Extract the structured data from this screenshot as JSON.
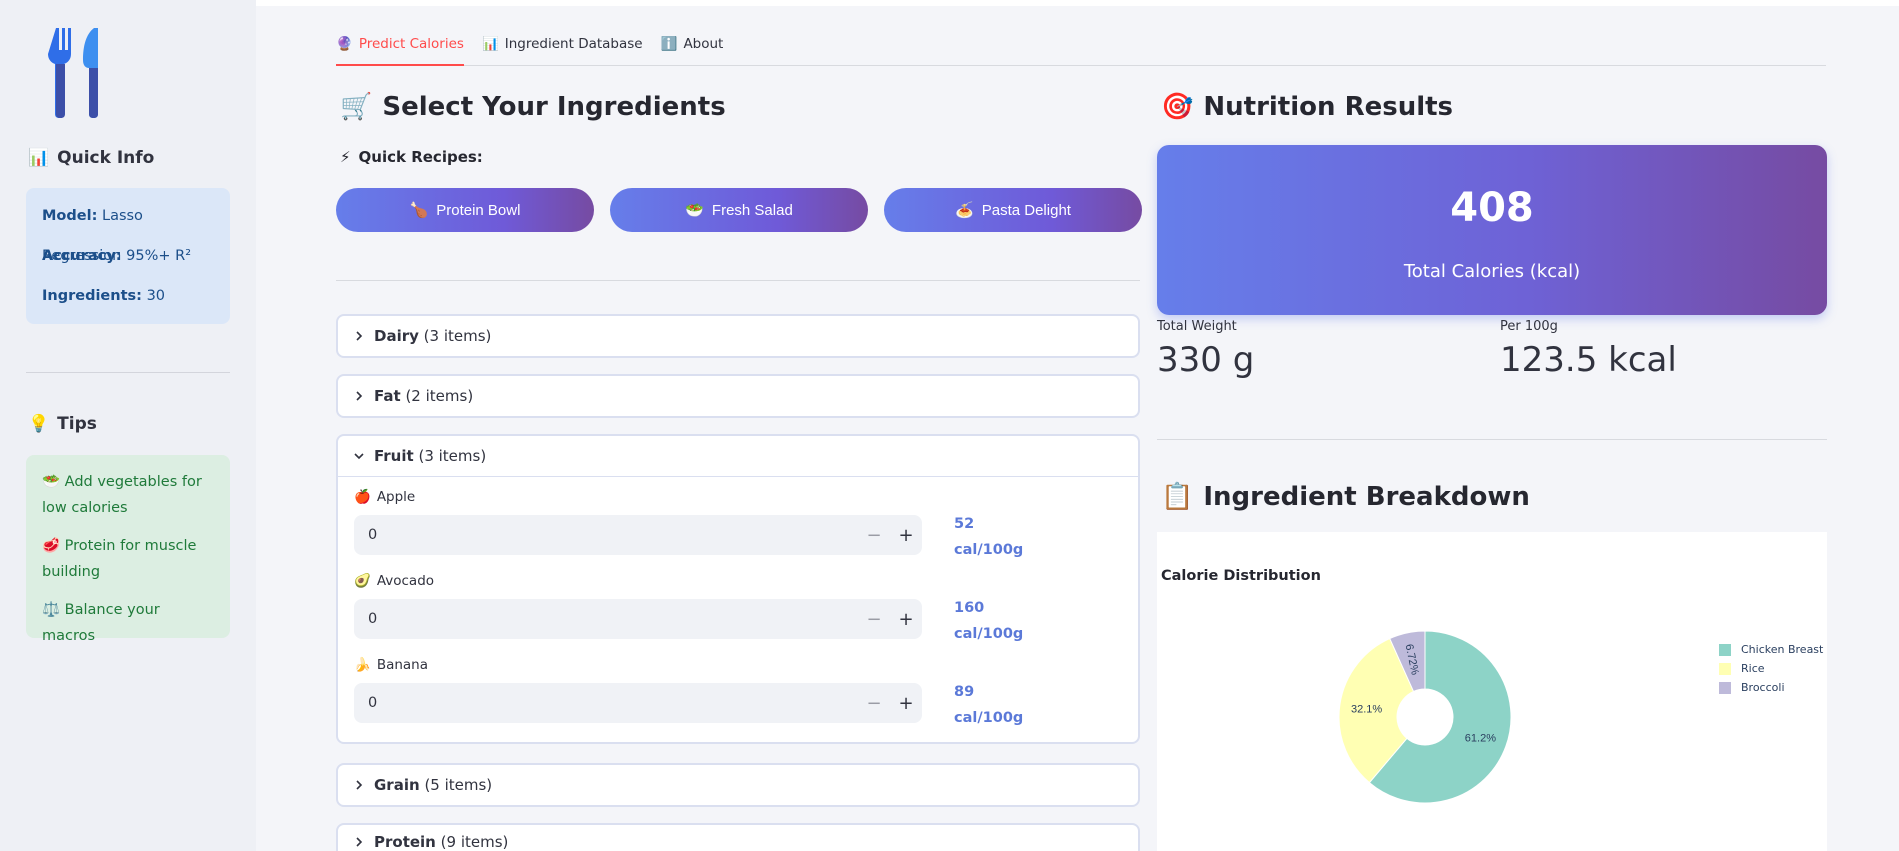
{
  "sidebar": {
    "quick_info_heading": "Quick Info",
    "info": [
      {
        "key": "Model:",
        "value": "Lasso Regression"
      },
      {
        "key": "Accuracy:",
        "value": "95%+ R²"
      },
      {
        "key": "Ingredients:",
        "value": "30"
      }
    ],
    "tips_heading": "Tips",
    "tips": [
      {
        "emoji": "🥗",
        "text": "Add vegetables for low calories"
      },
      {
        "emoji": "🥩",
        "text": "Protein for muscle building"
      },
      {
        "emoji": "⚖️",
        "text": "Balance your macros"
      }
    ]
  },
  "tabs": [
    {
      "emoji": "🔮",
      "label": "Predict Calories",
      "active": true
    },
    {
      "emoji": "📊",
      "label": "Ingredient Database",
      "active": false
    },
    {
      "emoji": "ℹ️",
      "label": "About",
      "active": false
    }
  ],
  "ingredients": {
    "heading_emoji": "🛒",
    "heading": "Select Your Ingredients",
    "quick_emoji": "⚡",
    "quick_label": "Quick Recipes:",
    "recipes": [
      {
        "emoji": "🍗",
        "label": "Protein Bowl"
      },
      {
        "emoji": "🥗",
        "label": "Fresh Salad"
      },
      {
        "emoji": "🍝",
        "label": "Pasta Delight"
      }
    ],
    "categories": [
      {
        "name": "Dairy",
        "count": "(3 items)"
      },
      {
        "name": "Fat",
        "count": "(2 items)"
      },
      {
        "name": "Fruit",
        "count": "(3 items)"
      },
      {
        "name": "Grain",
        "count": "(5 items)"
      },
      {
        "name": "Protein",
        "count": "(9 items)"
      }
    ],
    "fruit_items": [
      {
        "emoji": "🍎",
        "name": "Apple",
        "value": "0",
        "cal": "52",
        "unit": "cal/100g"
      },
      {
        "emoji": "🥑",
        "name": "Avocado",
        "value": "0",
        "cal": "160",
        "unit": "cal/100g"
      },
      {
        "emoji": "🍌",
        "name": "Banana",
        "value": "0",
        "cal": "89",
        "unit": "cal/100g"
      }
    ]
  },
  "results": {
    "heading_emoji": "🎯",
    "heading": "Nutrition Results",
    "total_calories": "408",
    "total_label": "Total Calories (kcal)",
    "total_weight_label": "Total Weight",
    "total_weight": "330 g",
    "per100_label": "Per 100g",
    "per100": "123.5 kcal",
    "breakdown_emoji": "📋",
    "breakdown_heading": "Ingredient Breakdown"
  },
  "colors": {
    "accent": "#ff4b4b",
    "gradient_start": "#667eea",
    "gradient_end": "#764ba2"
  },
  "chart_data": {
    "type": "pie",
    "title": "Calorie Distribution",
    "hole": true,
    "legend_position": "top-right",
    "series": [
      {
        "name": "Chicken Breast",
        "value": 61.2,
        "label": "61.2%",
        "color": "#8dd3c7"
      },
      {
        "name": "Rice",
        "value": 32.1,
        "label": "32.1%",
        "color": "#ffffb3"
      },
      {
        "name": "Broccoli",
        "value": 6.72,
        "label": "6.72%",
        "color": "#bebada"
      }
    ]
  }
}
